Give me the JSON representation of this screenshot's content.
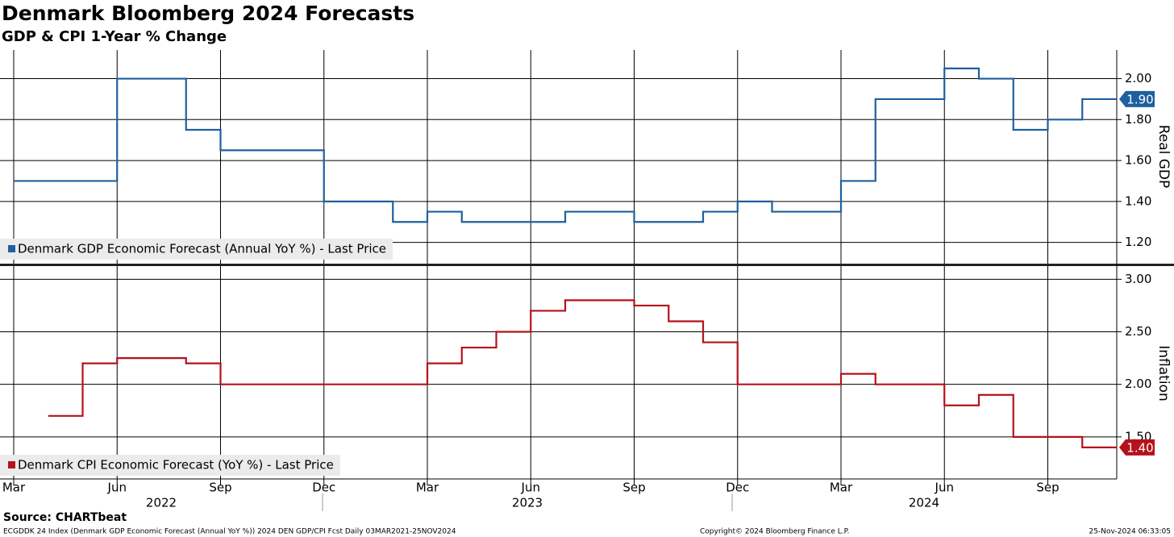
{
  "title": "Denmark Bloomberg 2024 Forecasts",
  "subtitle": "GDP & CPI 1-Year % Change",
  "source": "Source: CHARTbeat",
  "footer": {
    "left": "ECGDDK 24 Index (Denmark GDP Economic Forecast (Annual YoY %)) 2024 DEN GDP/CPI Fcst  Daily 03MAR2021-25NOV2024",
    "center": "Copyright© 2024 Bloomberg Finance L.P.",
    "right": "25-Nov-2024 06:33:05"
  },
  "chart_data": [
    {
      "type": "line",
      "step": "post",
      "ylabel": "Real GDP",
      "x": [
        "2022-03",
        "2022-04",
        "2022-05",
        "2022-06",
        "2022-07",
        "2022-08",
        "2022-09",
        "2022-10",
        "2022-11",
        "2022-12",
        "2023-01",
        "2023-02",
        "2023-03",
        "2023-04",
        "2023-05",
        "2023-06",
        "2023-07",
        "2023-08",
        "2023-09",
        "2023-10",
        "2023-11",
        "2023-12",
        "2024-01",
        "2024-02",
        "2024-03",
        "2024-04",
        "2024-05",
        "2024-06",
        "2024-07",
        "2024-08",
        "2024-09",
        "2024-10",
        "2024-11"
      ],
      "xlim": [
        "2022-03",
        "2024-11"
      ],
      "ylim": [
        1.1,
        2.14
      ],
      "yticks": [
        {
          "value": 1.2,
          "label": "1.20"
        },
        {
          "value": 1.4,
          "label": "1.40"
        },
        {
          "value": 1.6,
          "label": "1.60"
        },
        {
          "value": 1.8,
          "label": "1.80"
        },
        {
          "value": 2.0,
          "label": "2.00"
        }
      ],
      "grid": true,
      "series": [
        {
          "name": "Denmark GDP Economic Forecast (Annual YoY %) - Last Price",
          "color": "#1f5fa0",
          "values": [
            1.5,
            1.5,
            1.5,
            2.0,
            2.0,
            1.75,
            1.65,
            1.65,
            1.65,
            1.4,
            1.4,
            1.3,
            1.35,
            1.3,
            1.3,
            1.3,
            1.35,
            1.35,
            1.3,
            1.3,
            1.35,
            1.4,
            1.35,
            1.35,
            1.5,
            1.9,
            1.9,
            2.05,
            2.0,
            1.75,
            1.8,
            1.9,
            1.9
          ],
          "last_value": 1.9,
          "last_label": "1.90"
        }
      ]
    },
    {
      "type": "line",
      "step": "post",
      "ylabel": "Inflation",
      "x": [
        "2022-03",
        "2022-04",
        "2022-05",
        "2022-06",
        "2022-07",
        "2022-08",
        "2022-09",
        "2022-10",
        "2022-11",
        "2022-12",
        "2023-01",
        "2023-02",
        "2023-03",
        "2023-04",
        "2023-05",
        "2023-06",
        "2023-07",
        "2023-08",
        "2023-09",
        "2023-10",
        "2023-11",
        "2023-12",
        "2024-01",
        "2024-02",
        "2024-03",
        "2024-04",
        "2024-05",
        "2024-06",
        "2024-07",
        "2024-08",
        "2024-09",
        "2024-10",
        "2024-11"
      ],
      "xlim": [
        "2022-03",
        "2024-11"
      ],
      "xticks": [
        {
          "value": "2022-03",
          "label": "Mar"
        },
        {
          "value": "2022-06",
          "label": "Jun"
        },
        {
          "value": "2022-09",
          "label": "Sep"
        },
        {
          "value": "2022-12",
          "label": "Dec"
        },
        {
          "value": "2023-03",
          "label": "Mar"
        },
        {
          "value": "2023-06",
          "label": "Jun"
        },
        {
          "value": "2023-09",
          "label": "Sep"
        },
        {
          "value": "2023-12",
          "label": "Dec"
        },
        {
          "value": "2024-03",
          "label": "Mar"
        },
        {
          "value": "2024-06",
          "label": "Jun"
        },
        {
          "value": "2024-09",
          "label": "Sep"
        }
      ],
      "years": [
        "2022",
        "2023",
        "2024"
      ],
      "ylim": [
        1.1,
        3.11
      ],
      "yticks": [
        {
          "value": 1.5,
          "label": "1.50"
        },
        {
          "value": 2.0,
          "label": "2.00"
        },
        {
          "value": 2.5,
          "label": "2.50"
        },
        {
          "value": 3.0,
          "label": "3.00"
        }
      ],
      "grid": true,
      "series": [
        {
          "name": "Denmark CPI Economic Forecast (YoY %) - Last Price",
          "color": "#b5121b",
          "values": [
            null,
            1.7,
            2.2,
            2.25,
            2.25,
            2.2,
            2.0,
            2.0,
            2.0,
            2.0,
            2.0,
            2.0,
            2.2,
            2.35,
            2.5,
            2.7,
            2.8,
            2.8,
            2.75,
            2.6,
            2.4,
            2.0,
            2.0,
            2.0,
            2.1,
            2.0,
            2.0,
            1.8,
            1.9,
            1.5,
            1.5,
            1.4,
            1.4
          ],
          "last_value": 1.4,
          "last_label": "1.40"
        }
      ]
    }
  ]
}
